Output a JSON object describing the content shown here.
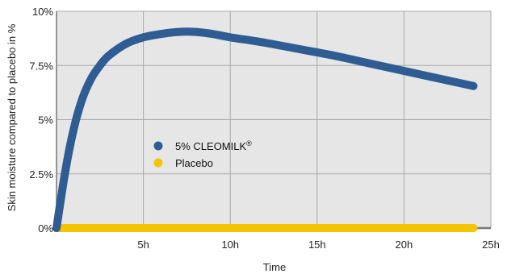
{
  "chart_data": {
    "type": "line",
    "title": "",
    "xlabel": "Time",
    "ylabel": "Skin moisture compared to placebo in %",
    "xlim": [
      0,
      25
    ],
    "ylim": [
      0,
      10
    ],
    "x_ticks": [
      5,
      10,
      15,
      20,
      25
    ],
    "x_tick_labels": [
      "5h",
      "10h",
      "15h",
      "20h",
      "25h"
    ],
    "y_ticks": [
      0,
      2.5,
      5,
      7.5,
      10
    ],
    "y_tick_labels": [
      "0%",
      "2.5%",
      "5%",
      "7.5%",
      "10%"
    ],
    "grid": true,
    "legend_position": "center-left",
    "series": [
      {
        "name": "5% CLEOMILK",
        "name_superscript": "®",
        "color": "#2f5d93",
        "x": [
          0,
          0.5,
          1,
          1.5,
          2,
          2.5,
          3,
          4,
          5,
          6,
          7,
          8,
          9,
          10,
          12,
          14,
          16,
          18,
          20,
          22,
          24
        ],
        "y": [
          0,
          2.6,
          4.6,
          6.0,
          6.9,
          7.5,
          7.95,
          8.5,
          8.8,
          8.95,
          9.05,
          9.05,
          8.95,
          8.8,
          8.55,
          8.25,
          7.95,
          7.6,
          7.25,
          6.9,
          6.55
        ]
      },
      {
        "name": "Placebo",
        "color": "#f5c400",
        "x": [
          0,
          24
        ],
        "y": [
          0,
          0
        ]
      }
    ]
  }
}
